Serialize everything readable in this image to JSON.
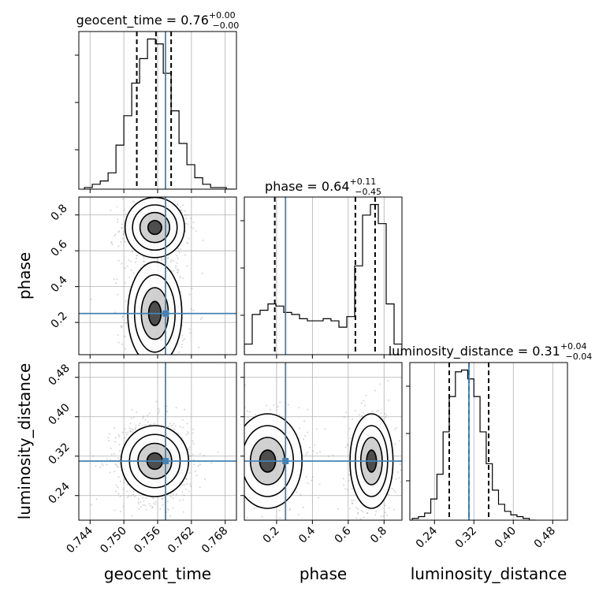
{
  "colors": {
    "truth": "#4682b4",
    "frame": "#000000",
    "grid": "#b0b0b0",
    "density_dark": "#000000",
    "points": "#888888"
  },
  "chart_data": {
    "type": "corner",
    "truth": {
      "geocent_time": 0.7574,
      "phase": 0.25,
      "luminosity_distance": 0.31
    },
    "parameters": [
      {
        "name": "geocent_time",
        "xlabel": "geocent_time",
        "range": [
          0.742,
          0.77
        ],
        "ticks": [
          0.744,
          0.75,
          0.756,
          0.762,
          0.768
        ],
        "tick_labels": [
          "0.744",
          "0.750",
          "0.756",
          "0.762",
          "0.768"
        ],
        "title_name": "geocent_time",
        "title_median": "0.76",
        "title_plus": "+0.00",
        "title_minus": "−0.00",
        "quantiles": [
          0.7523,
          0.7557,
          0.7584
        ],
        "hist_bin_edges": [
          0.743,
          0.7444,
          0.7458,
          0.7472,
          0.7486,
          0.75,
          0.7514,
          0.7528,
          0.7542,
          0.7556,
          0.757,
          0.7584,
          0.7598,
          0.7612,
          0.7626,
          0.764,
          0.7654,
          0.7668,
          0.7682,
          0.7696
        ],
        "hist_counts": [
          1,
          3,
          5,
          10,
          27,
          45,
          65,
          80,
          92,
          89,
          71,
          48,
          28,
          15,
          7,
          3,
          1,
          1,
          0
        ]
      },
      {
        "name": "phase",
        "xlabel": "phase",
        "ylabel": "phase",
        "range": [
          0.02,
          0.9
        ],
        "ticks": [
          0.2,
          0.4,
          0.6,
          0.8
        ],
        "tick_labels": [
          "0.2",
          "0.4",
          "0.6",
          "0.8"
        ],
        "title_name": "phase",
        "title_median": "0.64",
        "title_plus": "+0.11",
        "title_minus": "−0.45",
        "quantiles": [
          0.19,
          0.64,
          0.75
        ],
        "hist_bin_edges": [
          0.02,
          0.064,
          0.108,
          0.152,
          0.196,
          0.24,
          0.284,
          0.328,
          0.372,
          0.416,
          0.46,
          0.504,
          0.548,
          0.592,
          0.636,
          0.68,
          0.724,
          0.768,
          0.812,
          0.856,
          0.9
        ],
        "hist_counts": [
          5,
          19,
          21,
          24,
          23,
          20,
          19,
          17,
          16,
          16,
          17,
          16,
          13,
          18,
          42,
          66,
          71,
          62,
          24,
          5
        ]
      },
      {
        "name": "luminosity_distance",
        "xlabel": "luminosity_distance",
        "ylabel": "luminosity_distance",
        "range": [
          0.19,
          0.51
        ],
        "ticks": [
          0.24,
          0.32,
          0.4,
          0.48
        ],
        "tick_labels": [
          "0.24",
          "0.32",
          "0.40",
          "0.48"
        ],
        "title_name": "luminosity_distance",
        "title_median": "0.31",
        "title_plus": "+0.04",
        "title_minus": "−0.04",
        "quantiles": [
          0.27,
          0.31,
          0.35
        ],
        "hist_bin_edges": [
          0.195,
          0.2075,
          0.22,
          0.2325,
          0.245,
          0.2575,
          0.27,
          0.2825,
          0.295,
          0.3075,
          0.32,
          0.3325,
          0.345,
          0.3575,
          0.37,
          0.3825,
          0.395,
          0.4075,
          0.42,
          0.4325,
          0.445
        ],
        "hist_counts": [
          1,
          2,
          4,
          12,
          26,
          50,
          70,
          84,
          85,
          80,
          70,
          50,
          32,
          17,
          9,
          5,
          3,
          2,
          1,
          0
        ]
      }
    ],
    "joint_density": [
      {
        "x_param": "geocent_time",
        "y_param": "phase",
        "modes": [
          {
            "x": 0.7555,
            "y": 0.73,
            "sx": 0.0022,
            "sy": 0.07,
            "label": "upper"
          },
          {
            "x": 0.7555,
            "y": 0.25,
            "sx": 0.002,
            "sy": 0.12,
            "label": "lower"
          }
        ]
      },
      {
        "x_param": "geocent_time",
        "y_param": "luminosity_distance",
        "modes": [
          {
            "x": 0.7555,
            "y": 0.31,
            "sx": 0.0025,
            "sy": 0.03,
            "label": "center"
          }
        ]
      },
      {
        "x_param": "phase",
        "y_param": "luminosity_distance",
        "modes": [
          {
            "x": 0.73,
            "y": 0.31,
            "sx": 0.05,
            "sy": 0.04,
            "label": "right"
          },
          {
            "x": 0.15,
            "y": 0.31,
            "sx": 0.08,
            "sy": 0.04,
            "label": "left"
          }
        ]
      }
    ],
    "grid": true
  }
}
